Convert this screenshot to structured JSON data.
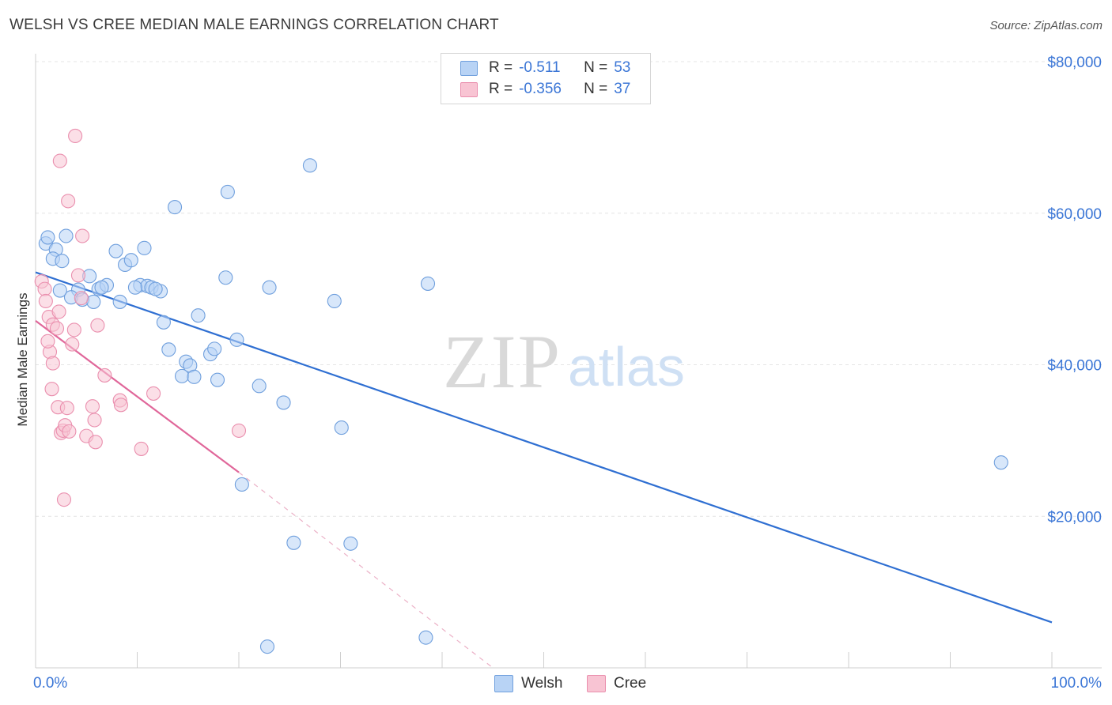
{
  "title": "WELSH VS CREE MEDIAN MALE EARNINGS CORRELATION CHART",
  "source": "Source: ZipAtlas.com",
  "watermark": {
    "zip": "ZIP",
    "atlas": "atlas"
  },
  "legend": {
    "r_label": "R =",
    "n_label": "N =",
    "welsh": {
      "r": "-0.511",
      "n": "53"
    },
    "cree": {
      "r": "-0.356",
      "n": "37"
    }
  },
  "colors": {
    "welsh_fill": "#b8d3f5",
    "welsh_stroke": "#6f9fdd",
    "welsh_line": "#2f6fd2",
    "cree_fill": "#f8c4d3",
    "cree_stroke": "#ea8fae",
    "cree_line": "#e0679a",
    "axis_text": "#3b76d6"
  },
  "chart_data": {
    "type": "scatter",
    "xlabel": "",
    "ylabel": "Median Male Earnings",
    "xlim": [
      0,
      100
    ],
    "ylim": [
      0,
      80000
    ],
    "x_tick_labels": [
      "0.0%",
      "100.0%"
    ],
    "y_ticks": [
      20000,
      40000,
      60000,
      80000
    ],
    "y_tick_labels": [
      "$20,000",
      "$40,000",
      "$60,000",
      "$80,000"
    ],
    "legend_entries": [
      "Welsh",
      "Cree"
    ],
    "series": [
      {
        "name": "Welsh",
        "points": [
          [
            1.0,
            56000
          ],
          [
            1.2,
            56800
          ],
          [
            2.0,
            55200
          ],
          [
            1.7,
            54000
          ],
          [
            2.6,
            53700
          ],
          [
            5.3,
            51700
          ],
          [
            4.2,
            49900
          ],
          [
            3.5,
            48900
          ],
          [
            4.6,
            48600
          ],
          [
            5.7,
            48300
          ],
          [
            6.2,
            50000
          ],
          [
            7.0,
            50500
          ],
          [
            8.3,
            48300
          ],
          [
            7.9,
            55000
          ],
          [
            8.8,
            53200
          ],
          [
            9.4,
            53800
          ],
          [
            10.7,
            55400
          ],
          [
            10.3,
            50500
          ],
          [
            11.0,
            50400
          ],
          [
            11.4,
            50200
          ],
          [
            12.3,
            49700
          ],
          [
            12.6,
            45600
          ],
          [
            13.1,
            42000
          ],
          [
            13.7,
            60800
          ],
          [
            14.4,
            38500
          ],
          [
            14.8,
            40400
          ],
          [
            15.2,
            39900
          ],
          [
            15.6,
            38400
          ],
          [
            16.0,
            46500
          ],
          [
            17.2,
            41400
          ],
          [
            17.6,
            42100
          ],
          [
            17.9,
            38000
          ],
          [
            18.7,
            51500
          ],
          [
            18.9,
            62800
          ],
          [
            19.8,
            43300
          ],
          [
            20.3,
            24200
          ],
          [
            22.0,
            37200
          ],
          [
            22.8,
            2800
          ],
          [
            23.0,
            50200
          ],
          [
            24.4,
            35000
          ],
          [
            25.4,
            16500
          ],
          [
            27.0,
            66300
          ],
          [
            29.4,
            48400
          ],
          [
            30.1,
            31700
          ],
          [
            31.0,
            16400
          ],
          [
            38.4,
            4000
          ],
          [
            38.6,
            50700
          ],
          [
            95.0,
            27100
          ],
          [
            3.0,
            57000
          ],
          [
            2.4,
            49800
          ],
          [
            6.5,
            50200
          ],
          [
            9.8,
            50200
          ],
          [
            11.8,
            50000
          ]
        ],
        "trend": {
          "x": [
            0,
            100
          ],
          "y": [
            52200,
            6000
          ]
        }
      },
      {
        "name": "Cree",
        "points": [
          [
            0.6,
            51000
          ],
          [
            0.9,
            50000
          ],
          [
            1.0,
            48400
          ],
          [
            1.3,
            46300
          ],
          [
            1.7,
            45300
          ],
          [
            2.1,
            44800
          ],
          [
            2.3,
            47000
          ],
          [
            1.4,
            41700
          ],
          [
            1.7,
            40200
          ],
          [
            1.6,
            36800
          ],
          [
            2.2,
            34400
          ],
          [
            2.5,
            31000
          ],
          [
            2.7,
            31300
          ],
          [
            2.9,
            32000
          ],
          [
            3.1,
            34300
          ],
          [
            3.3,
            31200
          ],
          [
            2.8,
            22200
          ],
          [
            3.6,
            42700
          ],
          [
            3.8,
            44600
          ],
          [
            4.2,
            51800
          ],
          [
            4.5,
            48800
          ],
          [
            4.6,
            57000
          ],
          [
            5.0,
            30600
          ],
          [
            5.6,
            34500
          ],
          [
            5.8,
            32700
          ],
          [
            5.9,
            29800
          ],
          [
            6.1,
            45200
          ],
          [
            6.8,
            38600
          ],
          [
            8.3,
            35300
          ],
          [
            8.4,
            34700
          ],
          [
            10.4,
            28900
          ],
          [
            11.6,
            36200
          ],
          [
            2.4,
            66900
          ],
          [
            3.2,
            61600
          ],
          [
            3.9,
            70200
          ],
          [
            20.0,
            31300
          ],
          [
            1.2,
            43100
          ]
        ],
        "trend": {
          "x": [
            0,
            20
          ],
          "y": [
            45800,
            25800
          ]
        },
        "trend_extension": {
          "x": [
            20,
            45
          ],
          "y": [
            25800,
            0
          ]
        }
      }
    ]
  }
}
